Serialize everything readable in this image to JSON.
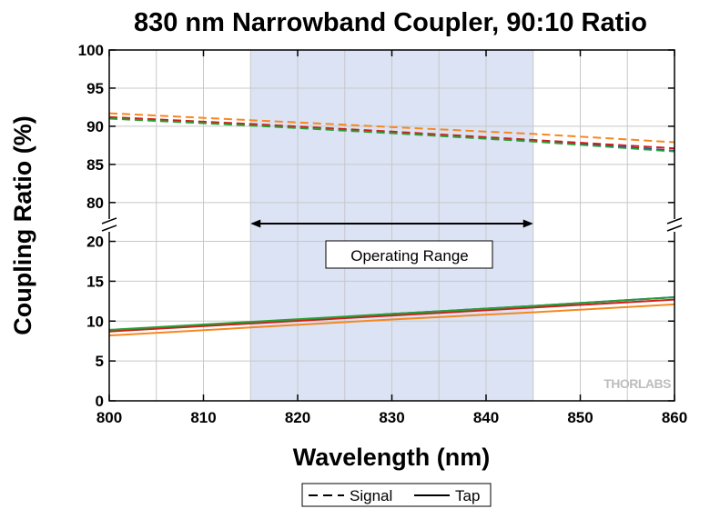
{
  "chart_data": {
    "type": "line",
    "title": "830 nm Narrowband Coupler, 90:10 Ratio",
    "xlabel": "Wavelength (nm)",
    "ylabel": "Coupling Ratio (%)",
    "xlim": [
      800,
      860
    ],
    "x_ticks": [
      "800",
      "810",
      "820",
      "830",
      "840",
      "850",
      "860"
    ],
    "y_axis_break": true,
    "upper_ylim": [
      77,
      100
    ],
    "upper_y_ticks": [
      "80",
      "85",
      "90",
      "95",
      "100"
    ],
    "lower_ylim": [
      0,
      22
    ],
    "lower_y_ticks": [
      "0",
      "5",
      "10",
      "15",
      "20"
    ],
    "grid": true,
    "shaded_region": {
      "x_start": 815,
      "x_end": 845,
      "color": "#dbe3f4"
    },
    "annotation": {
      "text": "Operating Range",
      "arrow_from": 815,
      "arrow_to": 845
    },
    "legend": {
      "placement": "bottom-center",
      "entries": [
        {
          "label": "Signal",
          "style": "dashed"
        },
        {
          "label": "Tap",
          "style": "solid"
        }
      ]
    },
    "watermark": "THORLABS",
    "series": [
      {
        "kind": "Signal",
        "color": "#1f33c8",
        "x": [
          800,
          815,
          830,
          845,
          860
        ],
        "values": [
          91.1,
          90.2,
          89.2,
          88.1,
          86.8
        ]
      },
      {
        "kind": "Signal",
        "color": "#d21c1c",
        "x": [
          800,
          815,
          830,
          845,
          860
        ],
        "values": [
          91.2,
          90.3,
          89.3,
          88.2,
          87.1
        ]
      },
      {
        "kind": "Signal",
        "color": "#26a035",
        "x": [
          800,
          815,
          830,
          845,
          860
        ],
        "values": [
          91.0,
          90.1,
          89.1,
          88.0,
          86.7
        ]
      },
      {
        "kind": "Signal",
        "color": "#f5881f",
        "x": [
          800,
          815,
          830,
          845,
          860
        ],
        "values": [
          91.7,
          90.8,
          89.9,
          89.0,
          87.9
        ]
      },
      {
        "kind": "Tap",
        "color": "#1f33c8",
        "x": [
          800,
          815,
          830,
          845,
          860
        ],
        "values": [
          8.8,
          9.8,
          10.9,
          11.9,
          13.0
        ]
      },
      {
        "kind": "Tap",
        "color": "#d21c1c",
        "x": [
          800,
          815,
          830,
          845,
          860
        ],
        "values": [
          8.7,
          9.7,
          10.7,
          11.7,
          12.7
        ]
      },
      {
        "kind": "Tap",
        "color": "#26a035",
        "x": [
          800,
          815,
          830,
          845,
          860
        ],
        "values": [
          8.9,
          9.9,
          10.9,
          11.9,
          13.0
        ]
      },
      {
        "kind": "Tap",
        "color": "#f5881f",
        "x": [
          800,
          815,
          830,
          845,
          860
        ],
        "values": [
          8.2,
          9.2,
          10.2,
          11.1,
          12.1
        ]
      }
    ]
  }
}
